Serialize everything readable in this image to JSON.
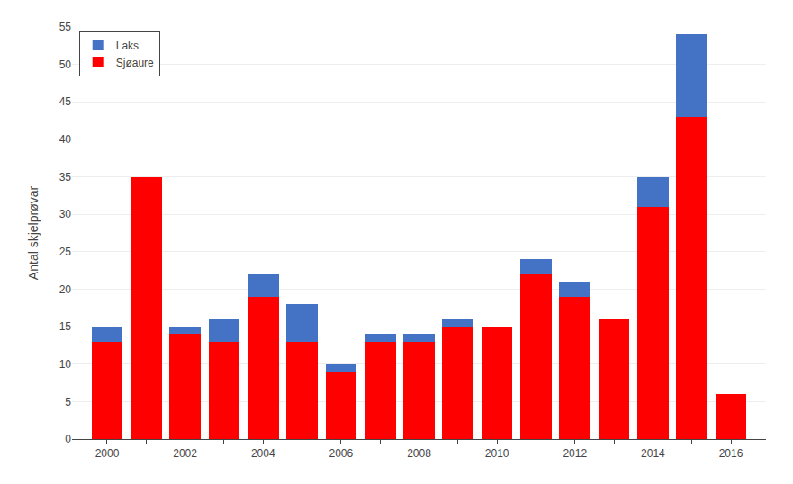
{
  "chart_data": {
    "type": "bar",
    "stacked": true,
    "categories": [
      "2000",
      null,
      "2002",
      null,
      "2004",
      null,
      "2006",
      null,
      "2008",
      null,
      "2010",
      null,
      "2012",
      null,
      "2014",
      null,
      "2016"
    ],
    "series": [
      {
        "name": "Sjøaure",
        "color": "#FF0000",
        "values": [
          13,
          35,
          14,
          13,
          19,
          13,
          9,
          13,
          13,
          15,
          15,
          22,
          19,
          16,
          31,
          43,
          6
        ]
      },
      {
        "name": "Laks",
        "color": "#4472C4",
        "values": [
          2,
          0,
          1,
          3,
          3,
          5,
          1,
          1,
          1,
          1,
          0,
          2,
          2,
          0,
          4,
          11,
          0
        ]
      }
    ],
    "ylabel": "Antal skjelprøvar",
    "ylim": [
      0,
      55
    ],
    "yticks": [
      0,
      5,
      10,
      15,
      20,
      25,
      30,
      35,
      40,
      45,
      50,
      55
    ],
    "grid": true,
    "legend": "upper left"
  }
}
